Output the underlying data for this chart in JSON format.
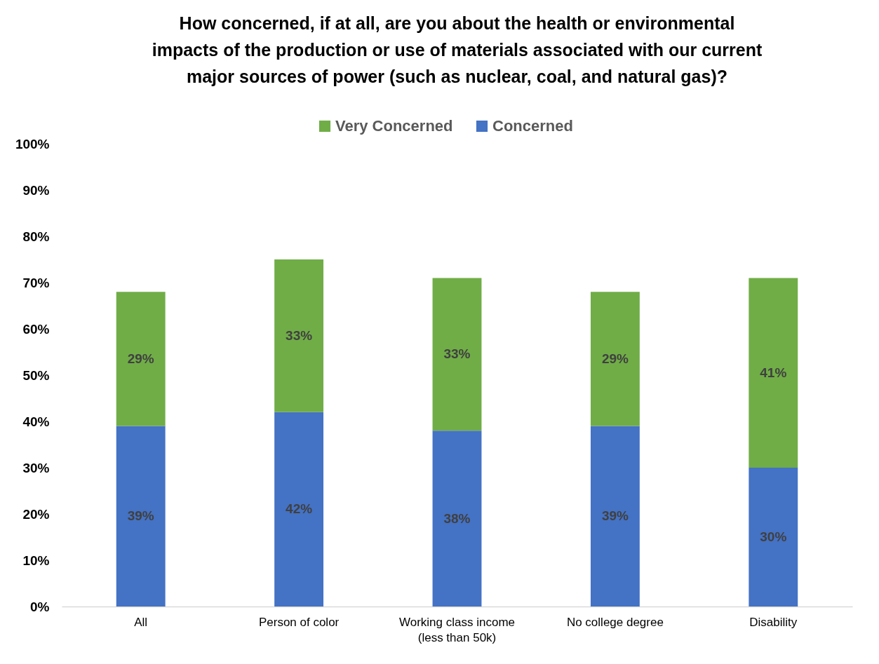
{
  "chart_data": {
    "type": "bar",
    "title": "How concerned, if at all, are you about the health or environmental impacts of the production or use of materials associated with our current major sources of power (such as nuclear, coal, and natural gas)?",
    "categories": [
      "All",
      "Person of color",
      "Working class income (less than 50k)",
      "No college degree",
      "Disability"
    ],
    "stacked": true,
    "legend": "top",
    "grid": false,
    "ylim": [
      0,
      100
    ],
    "yticks": [
      {
        "value": 0,
        "label": "0%"
      },
      {
        "value": 10,
        "label": "10%"
      },
      {
        "value": 20,
        "label": "20%"
      },
      {
        "value": 30,
        "label": "30%"
      },
      {
        "value": 40,
        "label": "40%"
      },
      {
        "value": 50,
        "label": "50%"
      },
      {
        "value": 60,
        "label": "60%"
      },
      {
        "value": 70,
        "label": "70%"
      },
      {
        "value": 80,
        "label": "80%"
      },
      {
        "value": 90,
        "label": "90%"
      },
      {
        "value": 100,
        "label": "100%"
      }
    ],
    "series": [
      {
        "name": "Concerned",
        "color": "#4472c4",
        "values": [
          39,
          42,
          38,
          39,
          30
        ],
        "value_labels": [
          "39%",
          "42%",
          "38%",
          "39%",
          "30%"
        ]
      },
      {
        "name": "Very Concerned",
        "color": "#70ad47",
        "values": [
          29,
          33,
          33,
          29,
          41
        ],
        "value_labels": [
          "29%",
          "33%",
          "33%",
          "29%",
          "41%"
        ]
      }
    ]
  }
}
